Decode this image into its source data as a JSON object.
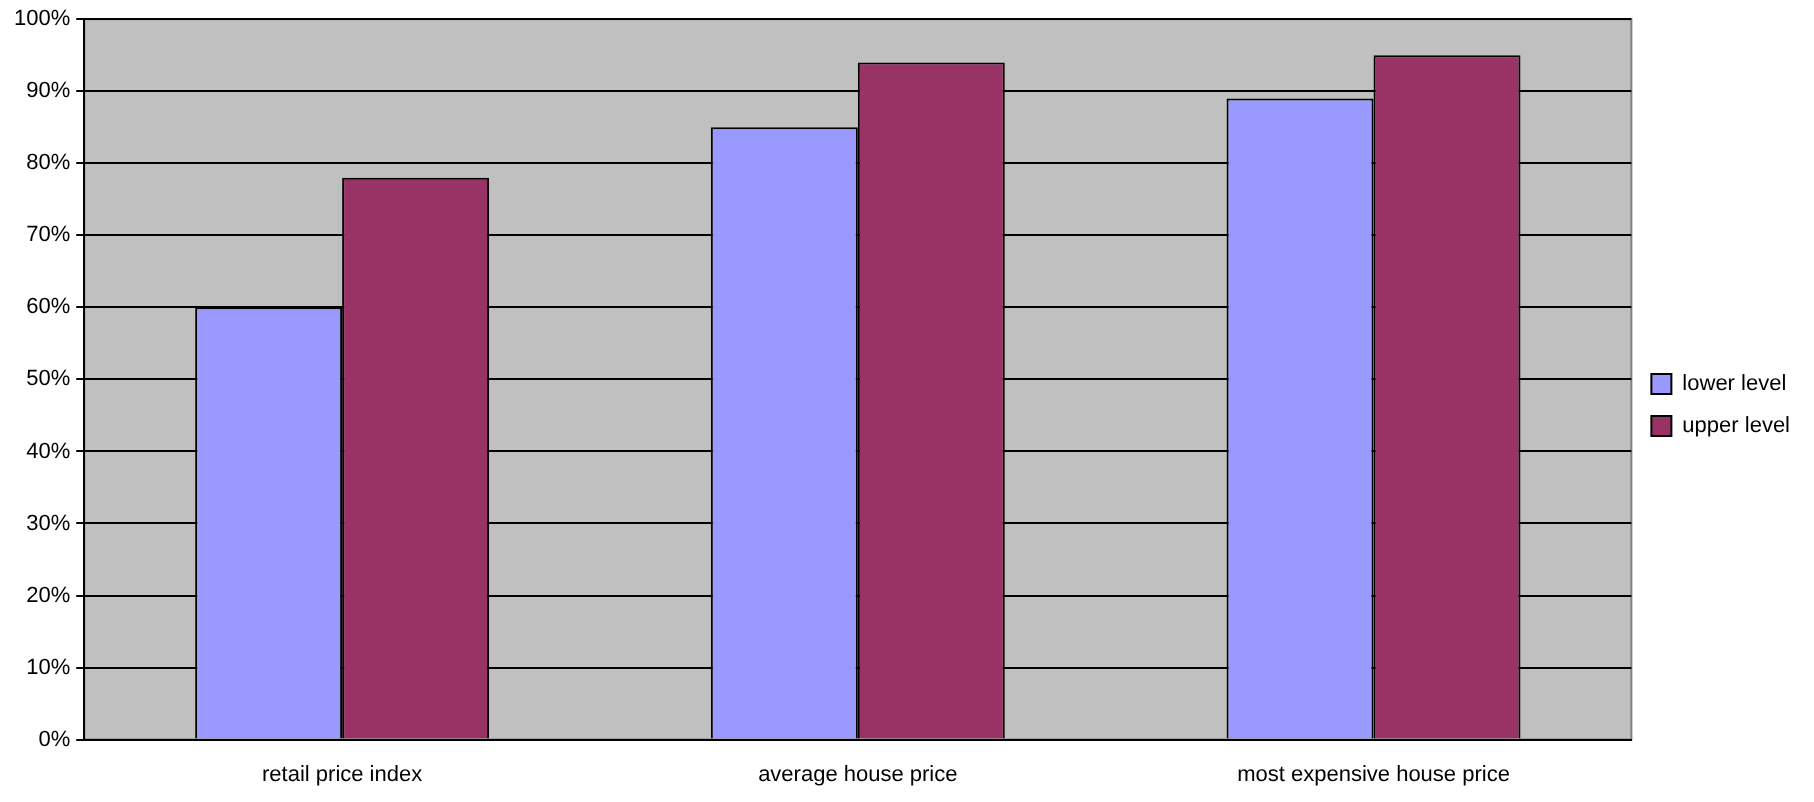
{
  "chart_data": {
    "type": "bar",
    "categories": [
      "retail price index",
      "average house price",
      "most expensive house price"
    ],
    "series": [
      {
        "name": "lower level",
        "color": "#9999ff",
        "values": [
          60,
          85,
          89
        ]
      },
      {
        "name": "upper level",
        "color": "#993366",
        "values": [
          78,
          94,
          95
        ]
      }
    ],
    "ylim": [
      0,
      100
    ],
    "yticks": [
      {
        "value": 0,
        "label": "0%"
      },
      {
        "value": 10,
        "label": "10%"
      },
      {
        "value": 20,
        "label": "20%"
      },
      {
        "value": 30,
        "label": "30%"
      },
      {
        "value": 40,
        "label": "40%"
      },
      {
        "value": 50,
        "label": "50%"
      },
      {
        "value": 60,
        "label": "60%"
      },
      {
        "value": 70,
        "label": "70%"
      },
      {
        "value": 80,
        "label": "80%"
      },
      {
        "value": 90,
        "label": "90%"
      },
      {
        "value": 100,
        "label": "100%"
      }
    ],
    "grid": "y",
    "legend": "right"
  }
}
